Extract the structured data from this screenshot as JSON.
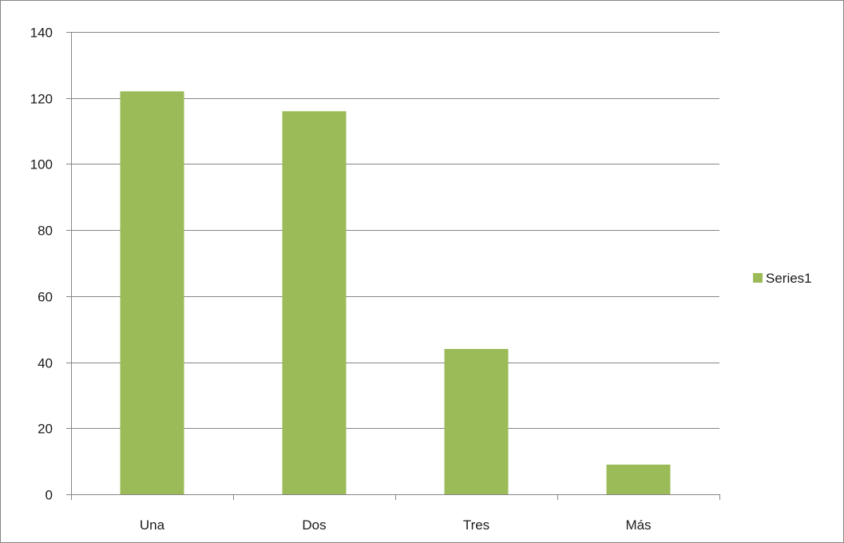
{
  "chart_data": {
    "type": "bar",
    "categories": [
      "Una",
      "Dos",
      "Tres",
      "Más"
    ],
    "series": [
      {
        "name": "Series1",
        "values": [
          122,
          116,
          44,
          9
        ],
        "color": "#9BBB59"
      }
    ],
    "ylim": [
      0,
      140
    ],
    "yticks": [
      0,
      20,
      40,
      60,
      80,
      100,
      120,
      140
    ],
    "ytick_labels": [
      "0",
      "20",
      "40",
      "60",
      "80",
      "100",
      "120",
      "140"
    ],
    "grid": true,
    "gridline_color": "#868686",
    "legend_placement": "right"
  }
}
